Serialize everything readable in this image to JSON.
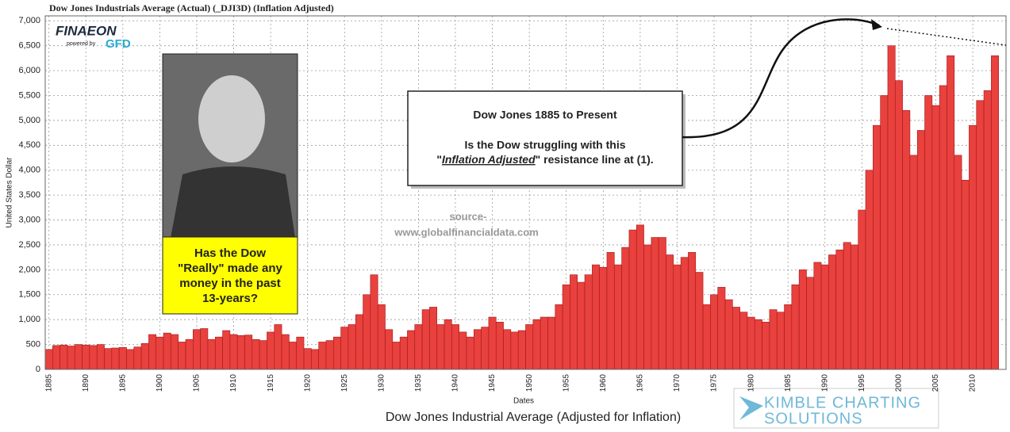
{
  "chart_data": {
    "type": "bar",
    "title": "Dow Jones Industrials Average (Actual) (_DJI3D) (Inflation Adjusted)",
    "y_label": "United States Dollar",
    "x_label": "Dates",
    "caption": "Dow Jones Industrial Average (Adjusted for Inflation)",
    "color": "#e8413e",
    "edge_color": "#a11a1a",
    "grid": true,
    "x": [
      1885,
      1886,
      1887,
      1888,
      1889,
      1890,
      1891,
      1892,
      1893,
      1894,
      1895,
      1896,
      1897,
      1898,
      1899,
      1900,
      1901,
      1902,
      1903,
      1904,
      1905,
      1906,
      1907,
      1908,
      1909,
      1910,
      1911,
      1912,
      1913,
      1914,
      1915,
      1916,
      1917,
      1918,
      1919,
      1920,
      1921,
      1922,
      1923,
      1924,
      1925,
      1926,
      1927,
      1928,
      1929,
      1930,
      1931,
      1932,
      1933,
      1934,
      1935,
      1936,
      1937,
      1938,
      1939,
      1940,
      1941,
      1942,
      1943,
      1944,
      1945,
      1946,
      1947,
      1948,
      1949,
      1950,
      1951,
      1952,
      1953,
      1954,
      1955,
      1956,
      1957,
      1958,
      1959,
      1960,
      1961,
      1962,
      1963,
      1964,
      1965,
      1966,
      1967,
      1968,
      1969,
      1970,
      1971,
      1972,
      1973,
      1974,
      1975,
      1976,
      1977,
      1978,
      1979,
      1980,
      1981,
      1982,
      1983,
      1984,
      1985,
      1986,
      1987,
      1988,
      1989,
      1990,
      1991,
      1992,
      1993,
      1994,
      1995,
      1996,
      1997,
      1998,
      1999,
      2000,
      2001,
      2002,
      2003,
      2004,
      2005,
      2006,
      2007,
      2008,
      2009,
      2010,
      2011,
      2012,
      2013
    ],
    "values": [
      400,
      480,
      490,
      470,
      500,
      490,
      480,
      500,
      420,
      430,
      440,
      400,
      450,
      520,
      700,
      650,
      730,
      700,
      550,
      600,
      800,
      820,
      600,
      650,
      780,
      700,
      680,
      690,
      600,
      580,
      750,
      900,
      700,
      550,
      650,
      420,
      400,
      550,
      580,
      650,
      850,
      900,
      1100,
      1500,
      1900,
      1300,
      800,
      550,
      650,
      780,
      900,
      1200,
      1250,
      900,
      1000,
      900,
      750,
      650,
      800,
      850,
      1050,
      950,
      800,
      750,
      780,
      900,
      1000,
      1050,
      1050,
      1300,
      1700,
      1900,
      1750,
      1900,
      2100,
      2050,
      2350,
      2100,
      2450,
      2800,
      2900,
      2500,
      2650,
      2650,
      2300,
      2100,
      2250,
      2350,
      1950,
      1300,
      1500,
      1650,
      1400,
      1250,
      1150,
      1050,
      1000,
      950,
      1200,
      1150,
      1300,
      1700,
      2000,
      1850,
      2150,
      2100,
      2300,
      2400,
      2550,
      2500,
      3200,
      4000,
      4900,
      5500,
      6500,
      5800,
      5200,
      4300,
      4800,
      5500,
      5300,
      5700,
      6300,
      4300,
      3800,
      4900,
      5400,
      5600,
      6300
    ],
    "xlim": [
      1884.5,
      2014.5
    ],
    "xticks": [
      1885,
      1890,
      1895,
      1900,
      1905,
      1910,
      1915,
      1920,
      1925,
      1930,
      1935,
      1940,
      1945,
      1950,
      1955,
      1960,
      1965,
      1970,
      1975,
      1980,
      1985,
      1990,
      1995,
      2000,
      2005,
      2010
    ],
    "ylim": [
      0,
      7100
    ],
    "yticks": [
      0,
      500,
      {
        "value": 1000,
        "label": "1,000"
      },
      {
        "value": 1500,
        "label": "1,500"
      },
      {
        "value": 2000,
        "label": "2,000"
      },
      {
        "value": 2500,
        "label": "2,500"
      },
      {
        "value": 3000,
        "label": "3,000"
      },
      {
        "value": 3500,
        "label": "3,500"
      },
      {
        "value": 4000,
        "label": "4,000"
      },
      {
        "value": 4500,
        "label": "4,500"
      },
      {
        "value": 5000,
        "label": "5,000"
      },
      {
        "value": 5500,
        "label": "5,500"
      },
      {
        "value": 6000,
        "label": "6,000"
      },
      {
        "value": 6500,
        "label": "6,500"
      },
      {
        "value": 7000,
        "label": "7,000"
      }
    ],
    "annotation": {
      "lines": [
        "Dow Jones 1885 to Present",
        "Is the Dow struggling with this"
      ],
      "quote_open": "\"",
      "emphasis": "Inflation Adjusted",
      "rest": "\" resistance line at (1)."
    },
    "question": [
      "Has the Dow",
      "\"Really\" made any",
      "money in the past",
      "13-years?"
    ],
    "source": [
      "source-",
      "www.globalfinancialdata.com"
    ],
    "logo": {
      "name": "FINAEON",
      "powered": "powered by",
      "gfd": "GFD"
    },
    "brand": [
      "KIMBLE CHARTING",
      "SOLUTIONS"
    ]
  }
}
